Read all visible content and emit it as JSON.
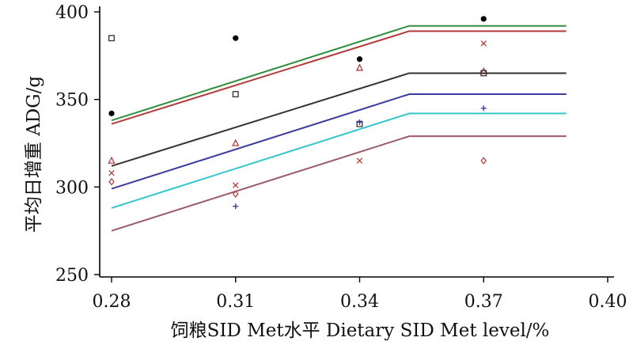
{
  "chart_data": {
    "type": "line",
    "xlabel": "饲粮SID Met水平 Dietary SID Met level/%",
    "ylabel": "平均日增重 ADG/g",
    "xlim": [
      0.28,
      0.4
    ],
    "ylim": [
      250,
      400
    ],
    "x_ticks": [
      "0.28",
      "0.31",
      "0.34",
      "0.37",
      "0.40"
    ],
    "y_ticks": [
      "250",
      "300",
      "350",
      "400"
    ],
    "grid": false,
    "legend": "none",
    "series": [
      {
        "color": "#2f8f3f",
        "marker": "dot",
        "line": {
          "x": [
            0.28,
            0.352,
            0.39
          ],
          "y": [
            338,
            392,
            392
          ]
        },
        "points": {
          "x": [
            0.28,
            0.31,
            0.34,
            0.37
          ],
          "y": [
            342,
            385,
            373,
            396
          ]
        }
      },
      {
        "color": "#b23a3a",
        "marker": "triangle",
        "line": {
          "x": [
            0.28,
            0.352,
            0.39
          ],
          "y": [
            336,
            389,
            389
          ]
        },
        "points": {
          "x": [
            0.28,
            0.31,
            0.34,
            0.37
          ],
          "y": [
            315,
            325,
            368,
            366
          ]
        }
      },
      {
        "color": "#333333",
        "marker": "square",
        "line": {
          "x": [
            0.28,
            0.352,
            0.39
          ],
          "y": [
            312,
            365,
            365
          ]
        },
        "points": {
          "x": [
            0.28,
            0.31,
            0.34,
            0.37
          ],
          "y": [
            385,
            353,
            336,
            365
          ]
        }
      },
      {
        "color": "#3b3b9e",
        "marker": "plus",
        "line": {
          "x": [
            0.28,
            0.352,
            0.39
          ],
          "y": [
            299,
            353,
            353
          ]
        },
        "points": {
          "x": [
            0.31,
            0.34,
            0.37
          ],
          "y": [
            289,
            337,
            345
          ]
        }
      },
      {
        "color": "#34c6cc",
        "marker": "cross",
        "line": {
          "x": [
            0.28,
            0.352,
            0.39
          ],
          "y": [
            288,
            342,
            342
          ]
        },
        "points": {
          "x": [
            0.28,
            0.31,
            0.34,
            0.37
          ],
          "y": [
            308,
            301,
            315,
            382
          ]
        }
      },
      {
        "color": "#9a5a6a",
        "marker": "diamond",
        "line": {
          "x": [
            0.28,
            0.352,
            0.39
          ],
          "y": [
            275,
            329,
            329
          ]
        },
        "points": {
          "x": [
            0.28,
            0.31,
            0.37
          ],
          "y": [
            303,
            296,
            315
          ]
        }
      }
    ]
  }
}
